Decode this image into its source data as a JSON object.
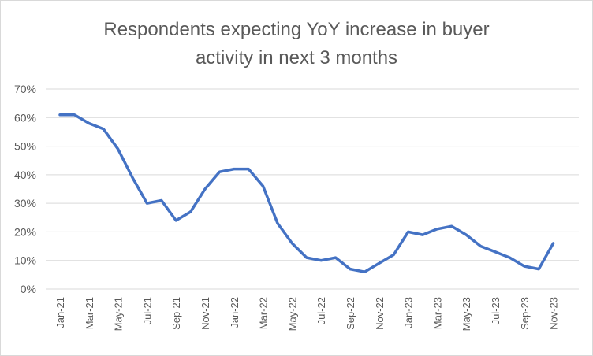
{
  "chart_data": {
    "type": "line",
    "title_lines": [
      "Respondents expecting YoY increase in buyer",
      "activity in next 3 months"
    ],
    "xlabel": "",
    "ylabel": "",
    "ylim": [
      0,
      70
    ],
    "yticks": [
      0,
      10,
      20,
      30,
      40,
      50,
      60,
      70
    ],
    "ytick_labels": [
      "0%",
      "10%",
      "20%",
      "30%",
      "40%",
      "50%",
      "60%",
      "70%"
    ],
    "grid": true,
    "legend": "none",
    "colors": {
      "line": "#4472C4",
      "grid": "#d9d9d9",
      "text": "#595959"
    },
    "x": [
      "Jan-21",
      "Feb-21",
      "Mar-21",
      "Apr-21",
      "May-21",
      "Jun-21",
      "Jul-21",
      "Aug-21",
      "Sep-21",
      "Oct-21",
      "Nov-21",
      "Dec-21",
      "Jan-22",
      "Feb-22",
      "Mar-22",
      "Apr-22",
      "May-22",
      "Jun-22",
      "Jul-22",
      "Aug-22",
      "Sep-22",
      "Oct-22",
      "Nov-22",
      "Dec-22",
      "Jan-23",
      "Feb-23",
      "Mar-23",
      "Apr-23",
      "May-23",
      "Jun-23",
      "Jul-23",
      "Aug-23",
      "Sep-23",
      "Oct-23",
      "Nov-23"
    ],
    "xtick_labels": [
      "Jan-21",
      "Mar-21",
      "May-21",
      "Jul-21",
      "Sep-21",
      "Nov-21",
      "Jan-22",
      "Mar-22",
      "May-22",
      "Jul-22",
      "Sep-22",
      "Nov-22",
      "Jan-23",
      "Mar-23",
      "May-23",
      "Jul-23",
      "Sep-23",
      "Nov-23"
    ],
    "series": [
      {
        "values": [
          61,
          61,
          58,
          56,
          49,
          39,
          30,
          31,
          24,
          27,
          35,
          41,
          42,
          42,
          36,
          23,
          16,
          11,
          10,
          11,
          7,
          6,
          9,
          12,
          20,
          19,
          21,
          22,
          19,
          15,
          13,
          11,
          8,
          7,
          16
        ]
      }
    ]
  }
}
